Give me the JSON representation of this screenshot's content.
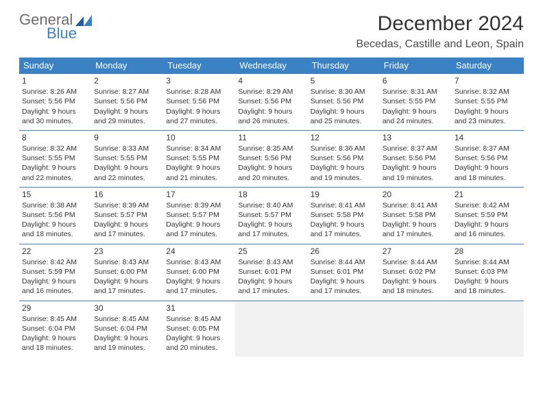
{
  "logo": {
    "word1": "General",
    "word2": "Blue"
  },
  "header": {
    "month_title": "December 2024",
    "location": "Becedas, Castille and Leon, Spain"
  },
  "calendar": {
    "weekdays": [
      "Sunday",
      "Monday",
      "Tuesday",
      "Wednesday",
      "Thursday",
      "Friday",
      "Saturday"
    ],
    "header_bg": "#3b82c4",
    "header_fg": "#ffffff",
    "cell_border": "#3b82c4",
    "empty_bg": "#f2f2f2",
    "weeks": [
      [
        {
          "day": "1",
          "sunrise": "Sunrise: 8:26 AM",
          "sunset": "Sunset: 5:56 PM",
          "daylight": "Daylight: 9 hours and 30 minutes."
        },
        {
          "day": "2",
          "sunrise": "Sunrise: 8:27 AM",
          "sunset": "Sunset: 5:56 PM",
          "daylight": "Daylight: 9 hours and 29 minutes."
        },
        {
          "day": "3",
          "sunrise": "Sunrise: 8:28 AM",
          "sunset": "Sunset: 5:56 PM",
          "daylight": "Daylight: 9 hours and 27 minutes."
        },
        {
          "day": "4",
          "sunrise": "Sunrise: 8:29 AM",
          "sunset": "Sunset: 5:56 PM",
          "daylight": "Daylight: 9 hours and 26 minutes."
        },
        {
          "day": "5",
          "sunrise": "Sunrise: 8:30 AM",
          "sunset": "Sunset: 5:56 PM",
          "daylight": "Daylight: 9 hours and 25 minutes."
        },
        {
          "day": "6",
          "sunrise": "Sunrise: 8:31 AM",
          "sunset": "Sunset: 5:55 PM",
          "daylight": "Daylight: 9 hours and 24 minutes."
        },
        {
          "day": "7",
          "sunrise": "Sunrise: 8:32 AM",
          "sunset": "Sunset: 5:55 PM",
          "daylight": "Daylight: 9 hours and 23 minutes."
        }
      ],
      [
        {
          "day": "8",
          "sunrise": "Sunrise: 8:32 AM",
          "sunset": "Sunset: 5:55 PM",
          "daylight": "Daylight: 9 hours and 22 minutes."
        },
        {
          "day": "9",
          "sunrise": "Sunrise: 8:33 AM",
          "sunset": "Sunset: 5:55 PM",
          "daylight": "Daylight: 9 hours and 22 minutes."
        },
        {
          "day": "10",
          "sunrise": "Sunrise: 8:34 AM",
          "sunset": "Sunset: 5:55 PM",
          "daylight": "Daylight: 9 hours and 21 minutes."
        },
        {
          "day": "11",
          "sunrise": "Sunrise: 8:35 AM",
          "sunset": "Sunset: 5:56 PM",
          "daylight": "Daylight: 9 hours and 20 minutes."
        },
        {
          "day": "12",
          "sunrise": "Sunrise: 8:36 AM",
          "sunset": "Sunset: 5:56 PM",
          "daylight": "Daylight: 9 hours and 19 minutes."
        },
        {
          "day": "13",
          "sunrise": "Sunrise: 8:37 AM",
          "sunset": "Sunset: 5:56 PM",
          "daylight": "Daylight: 9 hours and 19 minutes."
        },
        {
          "day": "14",
          "sunrise": "Sunrise: 8:37 AM",
          "sunset": "Sunset: 5:56 PM",
          "daylight": "Daylight: 9 hours and 18 minutes."
        }
      ],
      [
        {
          "day": "15",
          "sunrise": "Sunrise: 8:38 AM",
          "sunset": "Sunset: 5:56 PM",
          "daylight": "Daylight: 9 hours and 18 minutes."
        },
        {
          "day": "16",
          "sunrise": "Sunrise: 8:39 AM",
          "sunset": "Sunset: 5:57 PM",
          "daylight": "Daylight: 9 hours and 17 minutes."
        },
        {
          "day": "17",
          "sunrise": "Sunrise: 8:39 AM",
          "sunset": "Sunset: 5:57 PM",
          "daylight": "Daylight: 9 hours and 17 minutes."
        },
        {
          "day": "18",
          "sunrise": "Sunrise: 8:40 AM",
          "sunset": "Sunset: 5:57 PM",
          "daylight": "Daylight: 9 hours and 17 minutes."
        },
        {
          "day": "19",
          "sunrise": "Sunrise: 8:41 AM",
          "sunset": "Sunset: 5:58 PM",
          "daylight": "Daylight: 9 hours and 17 minutes."
        },
        {
          "day": "20",
          "sunrise": "Sunrise: 8:41 AM",
          "sunset": "Sunset: 5:58 PM",
          "daylight": "Daylight: 9 hours and 17 minutes."
        },
        {
          "day": "21",
          "sunrise": "Sunrise: 8:42 AM",
          "sunset": "Sunset: 5:59 PM",
          "daylight": "Daylight: 9 hours and 16 minutes."
        }
      ],
      [
        {
          "day": "22",
          "sunrise": "Sunrise: 8:42 AM",
          "sunset": "Sunset: 5:59 PM",
          "daylight": "Daylight: 9 hours and 16 minutes."
        },
        {
          "day": "23",
          "sunrise": "Sunrise: 8:43 AM",
          "sunset": "Sunset: 6:00 PM",
          "daylight": "Daylight: 9 hours and 17 minutes."
        },
        {
          "day": "24",
          "sunrise": "Sunrise: 8:43 AM",
          "sunset": "Sunset: 6:00 PM",
          "daylight": "Daylight: 9 hours and 17 minutes."
        },
        {
          "day": "25",
          "sunrise": "Sunrise: 8:43 AM",
          "sunset": "Sunset: 6:01 PM",
          "daylight": "Daylight: 9 hours and 17 minutes."
        },
        {
          "day": "26",
          "sunrise": "Sunrise: 8:44 AM",
          "sunset": "Sunset: 6:01 PM",
          "daylight": "Daylight: 9 hours and 17 minutes."
        },
        {
          "day": "27",
          "sunrise": "Sunrise: 8:44 AM",
          "sunset": "Sunset: 6:02 PM",
          "daylight": "Daylight: 9 hours and 18 minutes."
        },
        {
          "day": "28",
          "sunrise": "Sunrise: 8:44 AM",
          "sunset": "Sunset: 6:03 PM",
          "daylight": "Daylight: 9 hours and 18 minutes."
        }
      ],
      [
        {
          "day": "29",
          "sunrise": "Sunrise: 8:45 AM",
          "sunset": "Sunset: 6:04 PM",
          "daylight": "Daylight: 9 hours and 18 minutes."
        },
        {
          "day": "30",
          "sunrise": "Sunrise: 8:45 AM",
          "sunset": "Sunset: 6:04 PM",
          "daylight": "Daylight: 9 hours and 19 minutes."
        },
        {
          "day": "31",
          "sunrise": "Sunrise: 8:45 AM",
          "sunset": "Sunset: 6:05 PM",
          "daylight": "Daylight: 9 hours and 20 minutes."
        },
        null,
        null,
        null,
        null
      ]
    ]
  }
}
